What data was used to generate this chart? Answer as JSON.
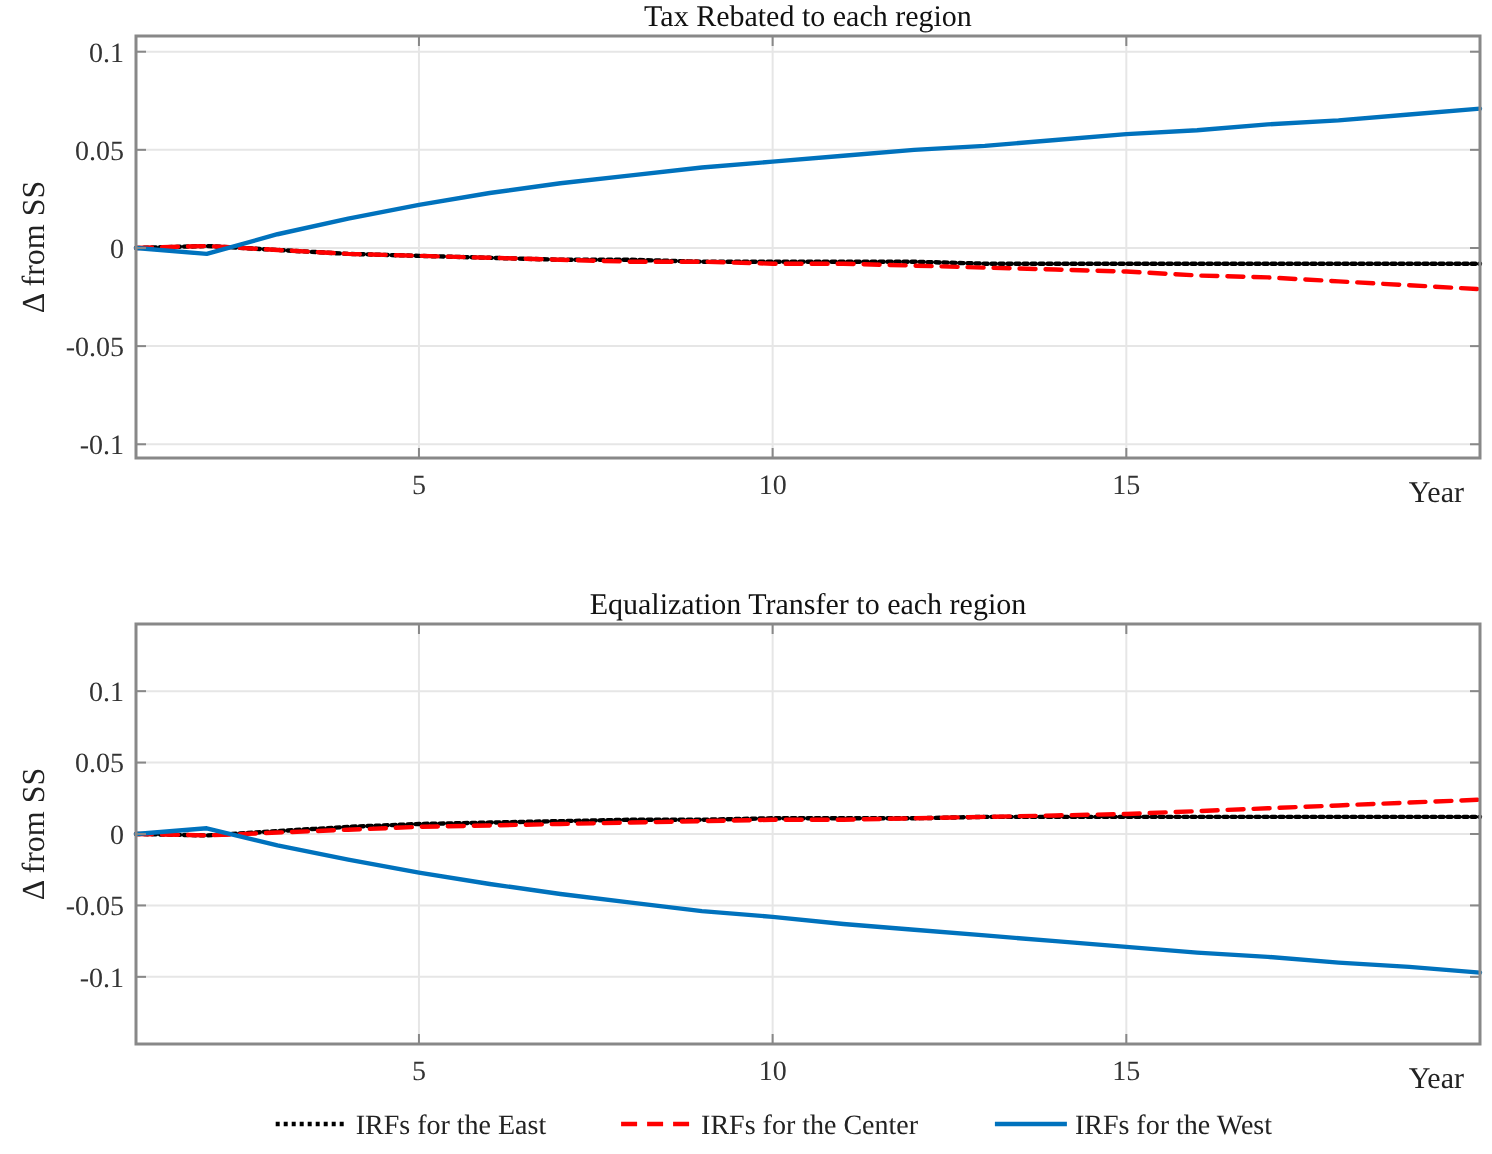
{
  "chart_data": [
    {
      "type": "line",
      "title": "Tax Rebated to each region",
      "xlabel": "Year",
      "ylabel": "Δ from SS",
      "x": [
        1,
        2,
        3,
        4,
        5,
        6,
        7,
        8,
        9,
        10,
        11,
        12,
        13,
        14,
        15,
        16,
        17,
        18,
        19,
        20
      ],
      "xlim": [
        1,
        20
      ],
      "xticks": [
        5,
        10,
        15
      ],
      "ylim": [
        -0.107,
        0.108
      ],
      "yticks": [
        -0.1,
        -0.05,
        0,
        0.05,
        0.1
      ],
      "grid": true,
      "legend": false,
      "series": [
        {
          "color": "#000000",
          "line_style": "dotted",
          "values": [
            0,
            0.001,
            -0.001,
            -0.003,
            -0.004,
            -0.005,
            -0.006,
            -0.006,
            -0.007,
            -0.007,
            -0.007,
            -0.007,
            -0.008,
            -0.008,
            -0.008,
            -0.008,
            -0.008,
            -0.008,
            -0.008,
            -0.008
          ]
        },
        {
          "color": "#ff0000",
          "line_style": "dashed",
          "values": [
            0,
            0.001,
            -0.001,
            -0.003,
            -0.004,
            -0.005,
            -0.006,
            -0.007,
            -0.007,
            -0.008,
            -0.008,
            -0.009,
            -0.01,
            -0.011,
            -0.012,
            -0.014,
            -0.015,
            -0.017,
            -0.019,
            -0.021
          ]
        },
        {
          "color": "#0072bd",
          "line_style": "solid",
          "values": [
            0,
            -0.003,
            0.007,
            0.015,
            0.022,
            0.028,
            0.033,
            0.037,
            0.041,
            0.044,
            0.047,
            0.05,
            0.052,
            0.055,
            0.058,
            0.06,
            0.063,
            0.065,
            0.068,
            0.071
          ]
        }
      ]
    },
    {
      "type": "line",
      "title": "Equalization Transfer to each region",
      "xlabel": "Year",
      "ylabel": "Δ from SS",
      "x": [
        1,
        2,
        3,
        4,
        5,
        6,
        7,
        8,
        9,
        10,
        11,
        12,
        13,
        14,
        15,
        16,
        17,
        18,
        19,
        20
      ],
      "xlim": [
        1,
        20
      ],
      "xticks": [
        5,
        10,
        15
      ],
      "ylim": [
        -0.147,
        0.147
      ],
      "yticks": [
        -0.1,
        -0.05,
        0,
        0.05,
        0.1
      ],
      "grid": true,
      "legend": "bottom",
      "series": [
        {
          "name": "IRFs for the East",
          "color": "#000000",
          "line_style": "dotted",
          "values": [
            0,
            -0.001,
            0.002,
            0.005,
            0.007,
            0.008,
            0.009,
            0.01,
            0.01,
            0.011,
            0.011,
            0.011,
            0.012,
            0.012,
            0.012,
            0.012,
            0.012,
            0.012,
            0.012,
            0.012
          ]
        },
        {
          "name": "IRFs for the Center",
          "color": "#ff0000",
          "line_style": "dashed",
          "values": [
            0,
            -0.001,
            0.001,
            0.003,
            0.005,
            0.006,
            0.007,
            0.008,
            0.009,
            0.01,
            0.01,
            0.011,
            0.012,
            0.013,
            0.014,
            0.016,
            0.018,
            0.02,
            0.022,
            0.024
          ]
        },
        {
          "name": "IRFs for the West",
          "color": "#0072bd",
          "line_style": "solid",
          "values": [
            0,
            0.004,
            -0.008,
            -0.018,
            -0.027,
            -0.035,
            -0.042,
            -0.048,
            -0.054,
            -0.058,
            -0.063,
            -0.067,
            -0.071,
            -0.075,
            -0.079,
            -0.083,
            -0.086,
            -0.09,
            -0.093,
            -0.097
          ]
        }
      ]
    }
  ]
}
